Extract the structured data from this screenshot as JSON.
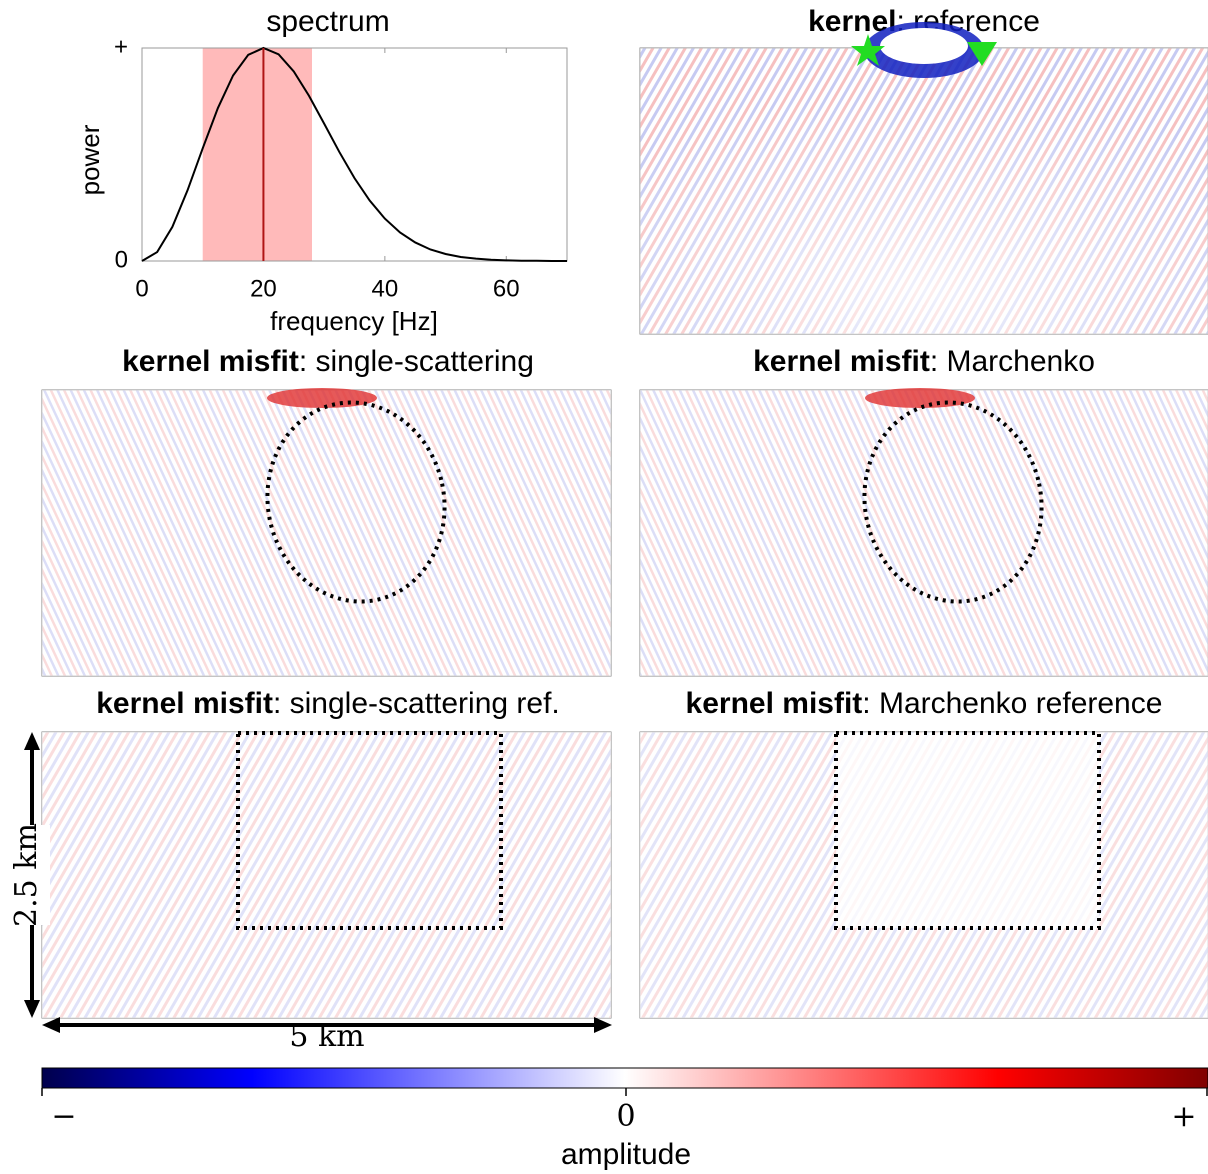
{
  "chart_data": {
    "type": "line",
    "title": "spectrum",
    "x_label": "frequency [Hz]",
    "y_label": "power",
    "x": [
      0,
      2.5,
      5,
      7.5,
      10,
      12.5,
      15,
      17.5,
      20,
      22.5,
      25,
      27.5,
      30,
      32.5,
      35,
      37.5,
      40,
      42.5,
      45,
      47.5,
      50,
      52.5,
      55,
      57.5,
      60,
      62.5,
      65,
      67.5,
      70
    ],
    "values": [
      0,
      0.042,
      0.16,
      0.332,
      0.529,
      0.718,
      0.871,
      0.968,
      1,
      0.97,
      0.89,
      0.776,
      0.645,
      0.512,
      0.389,
      0.284,
      0.199,
      0.134,
      0.087,
      0.054,
      0.033,
      0.019,
      0.011,
      0.006,
      0.003,
      0.001,
      0.001,
      0,
      0
    ],
    "color": "#000000",
    "band": [
      10,
      28
    ],
    "band_color": "#ffbaba",
    "marker": 20,
    "marker_color": "#b01515",
    "xlim": [
      0,
      70
    ],
    "xticks": [
      0,
      20,
      40,
      60
    ],
    "ylim": [
      0,
      1
    ],
    "yticks": [
      0,
      {
        "value": 1,
        "label": "+"
      }
    ]
  },
  "panels": [
    {
      "title_bold": "kernel",
      "title_rest": ": reference"
    },
    {
      "title_bold": "kernel misfit",
      "title_rest": ": single-scattering"
    },
    {
      "title_bold": "kernel misfit",
      "title_rest": ": Marchenko"
    },
    {
      "title_bold": "kernel misfit",
      "title_rest": ": single-scattering ref."
    },
    {
      "title_bold": "kernel misfit",
      "title_rest": ": Marchenko reference"
    }
  ],
  "scale": {
    "vertical": "2.5 km",
    "horizontal": "5 km"
  },
  "colorbar": {
    "ticks": [
      "−",
      "0",
      "+"
    ],
    "label": "amplitude"
  }
}
